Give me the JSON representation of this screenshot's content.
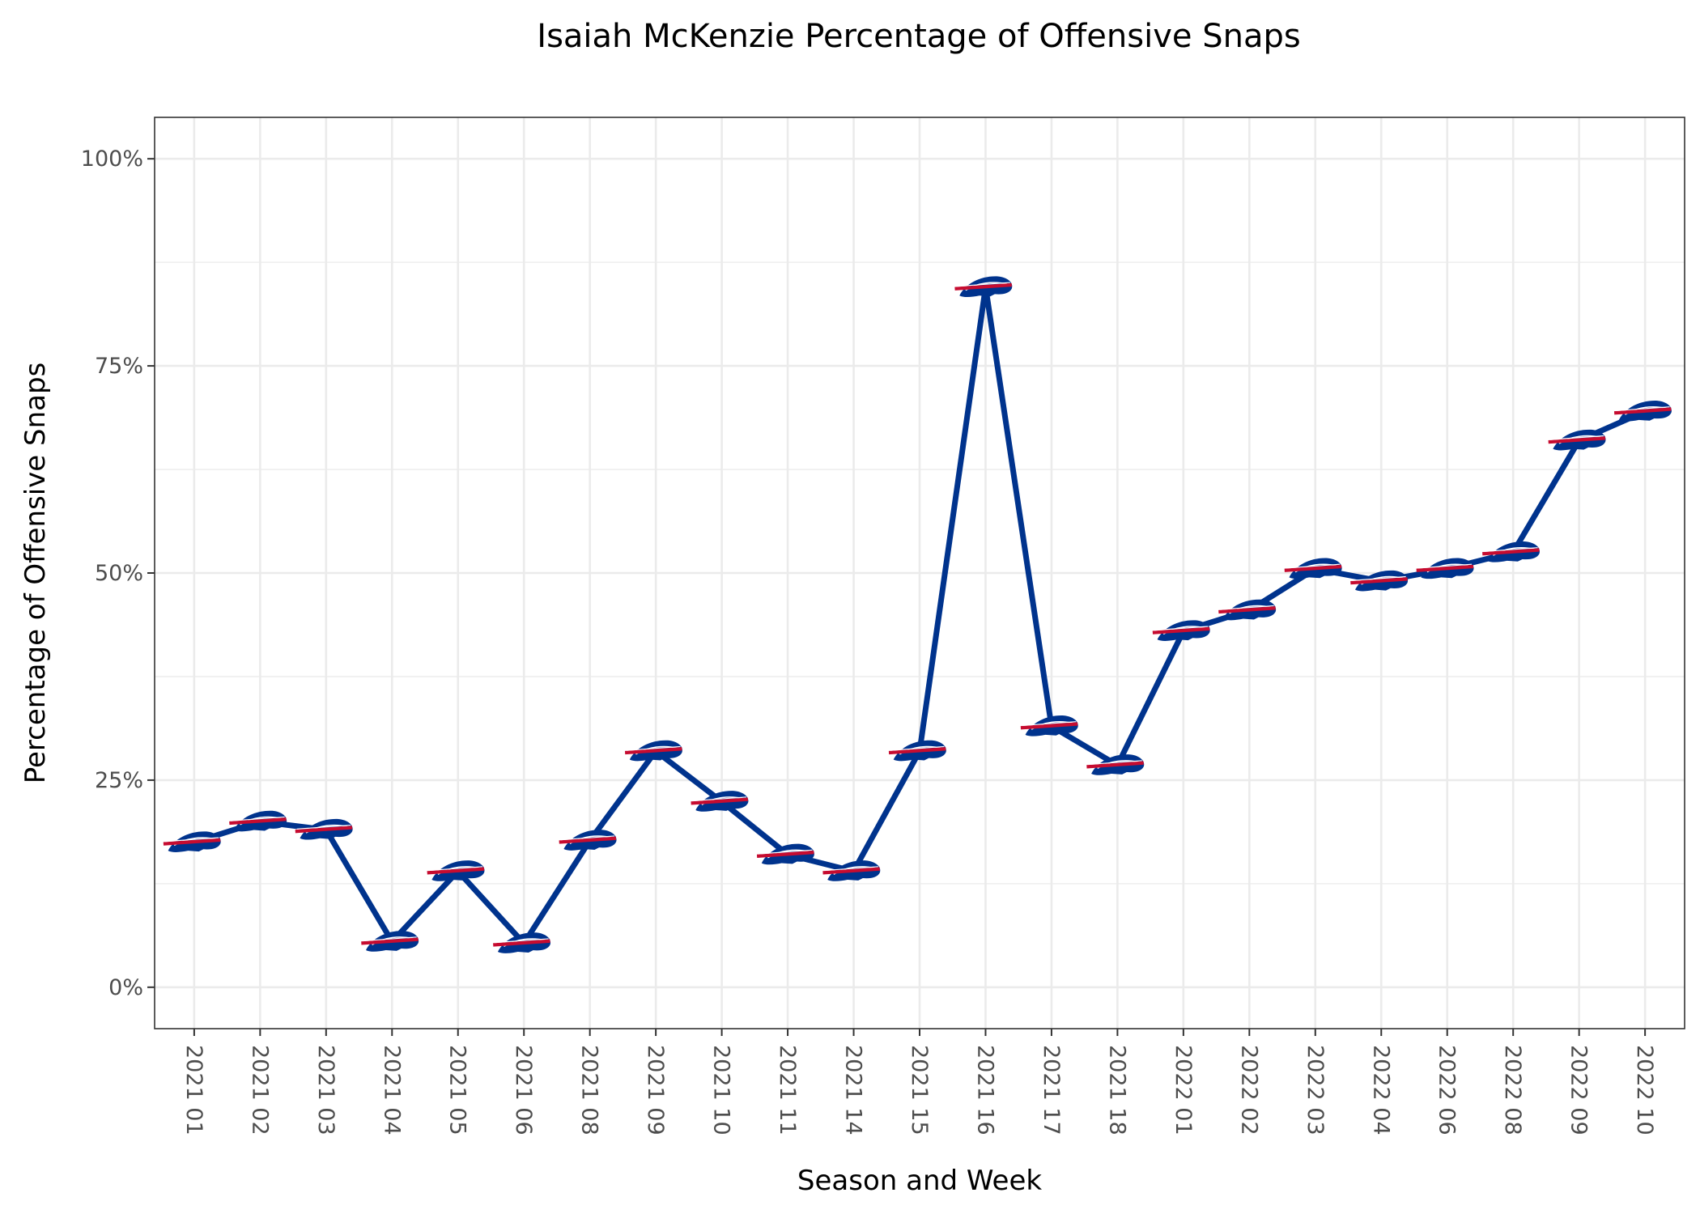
{
  "chart_data": {
    "type": "line",
    "title": "Isaiah McKenzie Percentage of Offensive Snaps",
    "xlabel": "Season and Week",
    "ylabel": "Percentage of Offensive Snaps",
    "categories": [
      "2021 01",
      "2021 02",
      "2021 03",
      "2021 04",
      "2021 05",
      "2021 06",
      "2021 08",
      "2021 09",
      "2021 10",
      "2021 11",
      "2021 14",
      "2021 15",
      "2021 16",
      "2021 17",
      "2021 18",
      "2022 01",
      "2022 02",
      "2022 03",
      "2022 04",
      "2022 06",
      "2022 08",
      "2022 09",
      "2022 10"
    ],
    "series": [
      {
        "values": [
          17.5,
          20.0,
          19.0,
          5.5,
          14.0,
          5.3,
          17.7,
          28.5,
          22.4,
          16.0,
          14.0,
          28.5,
          84.5,
          31.5,
          26.8,
          43.0,
          45.5,
          50.5,
          49.0,
          50.5,
          52.5,
          66.0,
          69.5
        ],
        "color": "#00338D",
        "marker": "buffalo-bills-logo-icon"
      }
    ],
    "ylim": [
      -5,
      105
    ],
    "yticks": [
      0,
      25,
      50,
      75,
      100
    ],
    "ytick_labels": [
      "0%",
      "25%",
      "50%",
      "75%",
      "100%"
    ],
    "grid": true,
    "legend": "none",
    "colors": {
      "line": "#00338D",
      "logo_blue": "#00338D",
      "logo_red": "#C60C30"
    }
  }
}
